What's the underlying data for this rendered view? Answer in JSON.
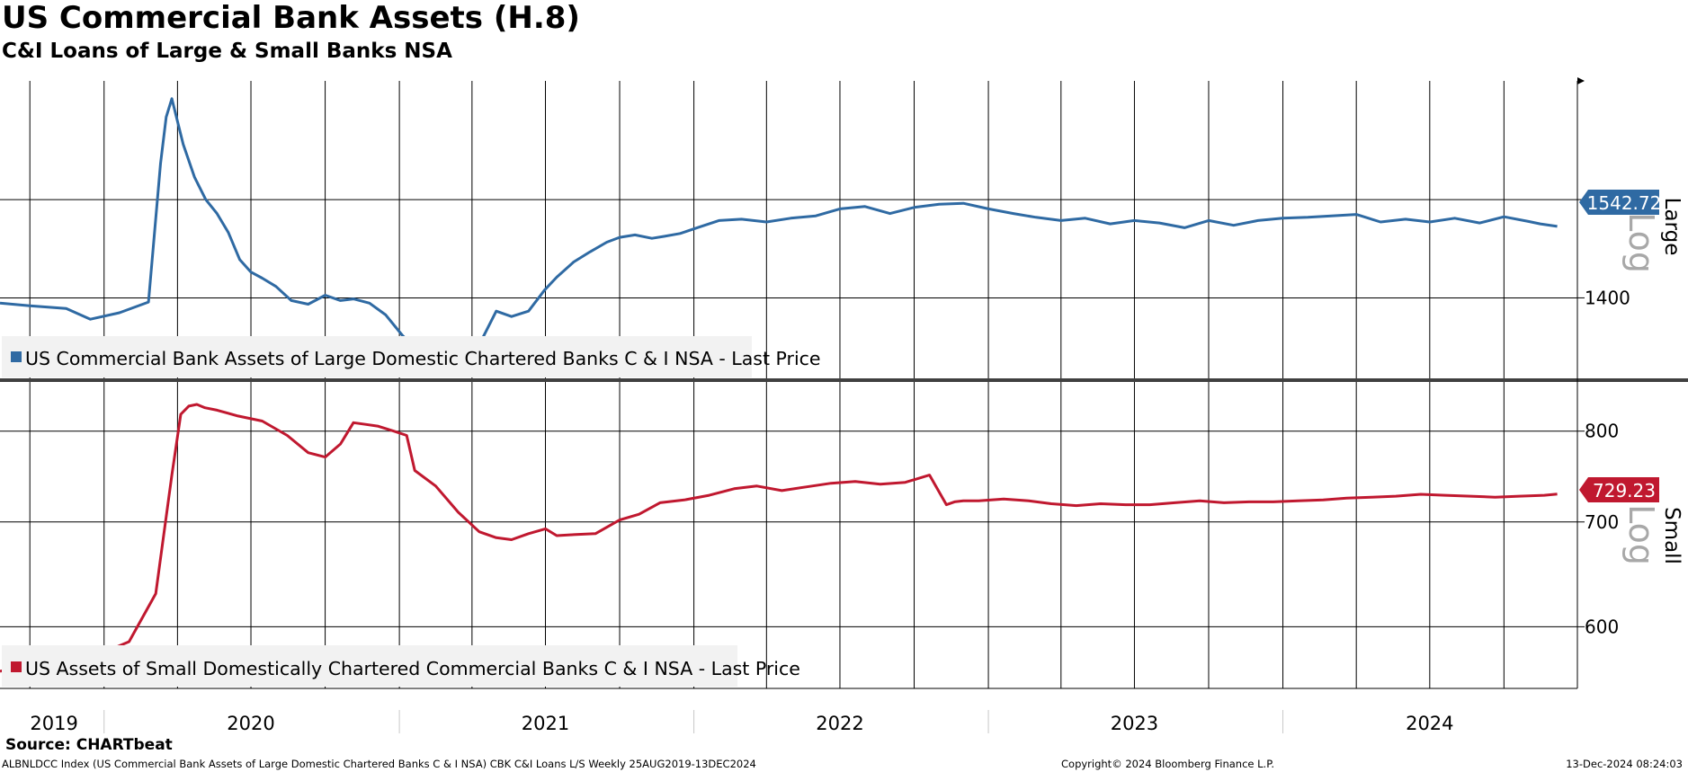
{
  "header": {
    "title": "US Commercial Bank Assets (H.8)",
    "subtitle": "C&I Loans of Large & Small Banks NSA"
  },
  "footer": {
    "source": "Source: CHARTbeat",
    "index_info": "ALBNLDCC Index (US Commercial Bank Assets of Large Domestic Chartered Banks C & I NSA) CBK C&I Loans L/S  Weekly 25AUG2019-13DEC2024",
    "copyright": "Copyright© 2024 Bloomberg Finance L.P.",
    "timestamp": "13-Dec-2024 08:24:03"
  },
  "colors": {
    "large": "#2f6aa3",
    "small": "#c0182f"
  },
  "chart_data": [
    {
      "type": "line",
      "panel": "Large",
      "scale": "log",
      "scale_label": "Log",
      "axis_label": "Large",
      "y_ticks": [
        1400,
        1600
      ],
      "ylim": [
        1255,
        1880
      ],
      "xlim": [
        "2019-08-25",
        "2024-12-31"
      ],
      "last_value_label": "1542.72",
      "legend": "US Commercial Bank Assets of Large Domestic Chartered Banks C & I NSA - Last Price",
      "series": [
        {
          "name": "US Commercial Bank Assets of Large Domestic Chartered Banks C & I NSA - Last Price",
          "x": [
            "2019-08-25",
            "2019-10-01",
            "2019-11-15",
            "2019-12-15",
            "2020-01-20",
            "2020-02-25",
            "2020-03-11",
            "2020-03-18",
            "2020-03-25",
            "2020-04-08",
            "2020-04-22",
            "2020-05-06",
            "2020-05-20",
            "2020-06-03",
            "2020-06-17",
            "2020-07-01",
            "2020-07-15",
            "2020-08-01",
            "2020-08-20",
            "2020-09-10",
            "2020-10-01",
            "2020-10-20",
            "2020-11-05",
            "2020-11-25",
            "2020-12-15",
            "2021-01-05",
            "2021-01-20",
            "2021-02-05",
            "2021-02-20",
            "2021-03-10",
            "2021-03-30",
            "2021-04-15",
            "2021-05-01",
            "2021-05-20",
            "2021-06-10",
            "2021-06-30",
            "2021-07-15",
            "2021-08-05",
            "2021-08-25",
            "2021-09-15",
            "2021-10-01",
            "2021-10-20",
            "2021-11-10",
            "2021-11-25",
            "2021-12-15",
            "2022-01-05",
            "2022-02-01",
            "2022-03-01",
            "2022-04-01",
            "2022-05-01",
            "2022-06-01",
            "2022-07-01",
            "2022-08-01",
            "2022-09-01",
            "2022-10-01",
            "2022-11-01",
            "2022-12-01",
            "2023-01-01",
            "2023-02-01",
            "2023-03-01",
            "2023-04-01",
            "2023-05-01",
            "2023-06-01",
            "2023-07-01",
            "2023-08-01",
            "2023-09-01",
            "2023-10-01",
            "2023-11-01",
            "2023-12-01",
            "2024-01-01",
            "2024-02-01",
            "2024-03-01",
            "2024-04-01",
            "2024-05-01",
            "2024-06-01",
            "2024-07-01",
            "2024-08-01",
            "2024-09-01",
            "2024-10-01",
            "2024-11-01",
            "2024-11-15",
            "2024-12-06"
          ],
          "values": [
            1390,
            1385,
            1380,
            1360,
            1372,
            1392,
            1680,
            1790,
            1835,
            1725,
            1650,
            1600,
            1570,
            1530,
            1475,
            1450,
            1438,
            1422,
            1395,
            1388,
            1405,
            1395,
            1398,
            1390,
            1368,
            1330,
            1310,
            1300,
            1287,
            1282,
            1310,
            1328,
            1375,
            1365,
            1375,
            1415,
            1440,
            1470,
            1490,
            1510,
            1520,
            1525,
            1518,
            1522,
            1528,
            1540,
            1555,
            1558,
            1552,
            1560,
            1565,
            1580,
            1585,
            1570,
            1583,
            1590,
            1592,
            1580,
            1570,
            1562,
            1555,
            1560,
            1548,
            1555,
            1550,
            1540,
            1555,
            1545,
            1555,
            1560,
            1562,
            1565,
            1568,
            1552,
            1558,
            1552,
            1560,
            1550,
            1563,
            1553,
            1548,
            1542.72
          ]
        }
      ]
    },
    {
      "type": "line",
      "panel": "Small",
      "scale": "log",
      "scale_label": "Log",
      "axis_label": "Small",
      "y_ticks": [
        600,
        700,
        800
      ],
      "ylim": [
        548,
        860
      ],
      "xlim": [
        "2019-08-25",
        "2024-12-31"
      ],
      "last_value_label": "729.23",
      "legend": "US Assets of Small Domestically Chartered Commercial Banks C & I NSA - Last Price",
      "series": [
        {
          "name": "US Assets of Small Domestically Chartered Commercial Banks C & I NSA - Last Price",
          "x": [
            "2019-08-25",
            "2019-10-01",
            "2019-11-01",
            "2019-11-15",
            "2019-12-01",
            "2020-01-01",
            "2020-02-01",
            "2020-03-05",
            "2020-03-25",
            "2020-04-05",
            "2020-04-15",
            "2020-04-25",
            "2020-05-05",
            "2020-05-20",
            "2020-06-15",
            "2020-07-15",
            "2020-08-15",
            "2020-09-10",
            "2020-10-01",
            "2020-10-20",
            "2020-11-05",
            "2020-11-20",
            "2020-12-05",
            "2020-12-25",
            "2021-01-10",
            "2021-01-20",
            "2021-02-15",
            "2021-03-15",
            "2021-04-10",
            "2021-05-01",
            "2021-05-20",
            "2021-06-10",
            "2021-07-01",
            "2021-07-15",
            "2021-08-05",
            "2021-09-01",
            "2021-10-01",
            "2021-10-25",
            "2021-11-20",
            "2021-12-20",
            "2022-01-20",
            "2022-02-20",
            "2022-03-20",
            "2022-04-20",
            "2022-05-20",
            "2022-06-20",
            "2022-07-20",
            "2022-08-20",
            "2022-09-20",
            "2022-10-20",
            "2022-11-10",
            "2022-11-20",
            "2022-12-01",
            "2022-12-20",
            "2023-01-20",
            "2023-02-20",
            "2023-03-20",
            "2023-04-20",
            "2023-05-20",
            "2023-06-20",
            "2023-07-20",
            "2023-08-20",
            "2023-09-20",
            "2023-10-20",
            "2023-11-20",
            "2023-12-20",
            "2024-01-20",
            "2024-02-20",
            "2024-03-20",
            "2024-04-20",
            "2024-05-20",
            "2024-06-20",
            "2024-07-20",
            "2024-08-20",
            "2024-09-20",
            "2024-10-20",
            "2024-11-20",
            "2024-12-06"
          ],
          "values": [
            562,
            567,
            570,
            578,
            576,
            578,
            587,
            630,
            750,
            820,
            830,
            832,
            828,
            825,
            818,
            812,
            795,
            775,
            770,
            785,
            810,
            808,
            806,
            800,
            795,
            755,
            738,
            710,
            690,
            684,
            682,
            688,
            693,
            686,
            687,
            688,
            702,
            708,
            720,
            723,
            728,
            735,
            738,
            733,
            737,
            741,
            743,
            740,
            742,
            750,
            718,
            721,
            722,
            722,
            724,
            722,
            719,
            717,
            719,
            718,
            718,
            720,
            722,
            720,
            721,
            721,
            722,
            723,
            725,
            726,
            727,
            729,
            728,
            727,
            726,
            727,
            728,
            729.23
          ]
        }
      ]
    }
  ],
  "x_axis": {
    "year_labels": [
      {
        "label": "2019",
        "date": "2019-10-31"
      },
      {
        "label": "2020",
        "date": "2020-07-01"
      },
      {
        "label": "2021",
        "date": "2021-07-01"
      },
      {
        "label": "2022",
        "date": "2022-07-01"
      },
      {
        "label": "2023",
        "date": "2023-07-01"
      },
      {
        "label": "2024",
        "date": "2024-07-01"
      }
    ],
    "year_boundaries": [
      "2020-01-01",
      "2021-01-01",
      "2022-01-01",
      "2023-01-01",
      "2024-01-01"
    ]
  }
}
